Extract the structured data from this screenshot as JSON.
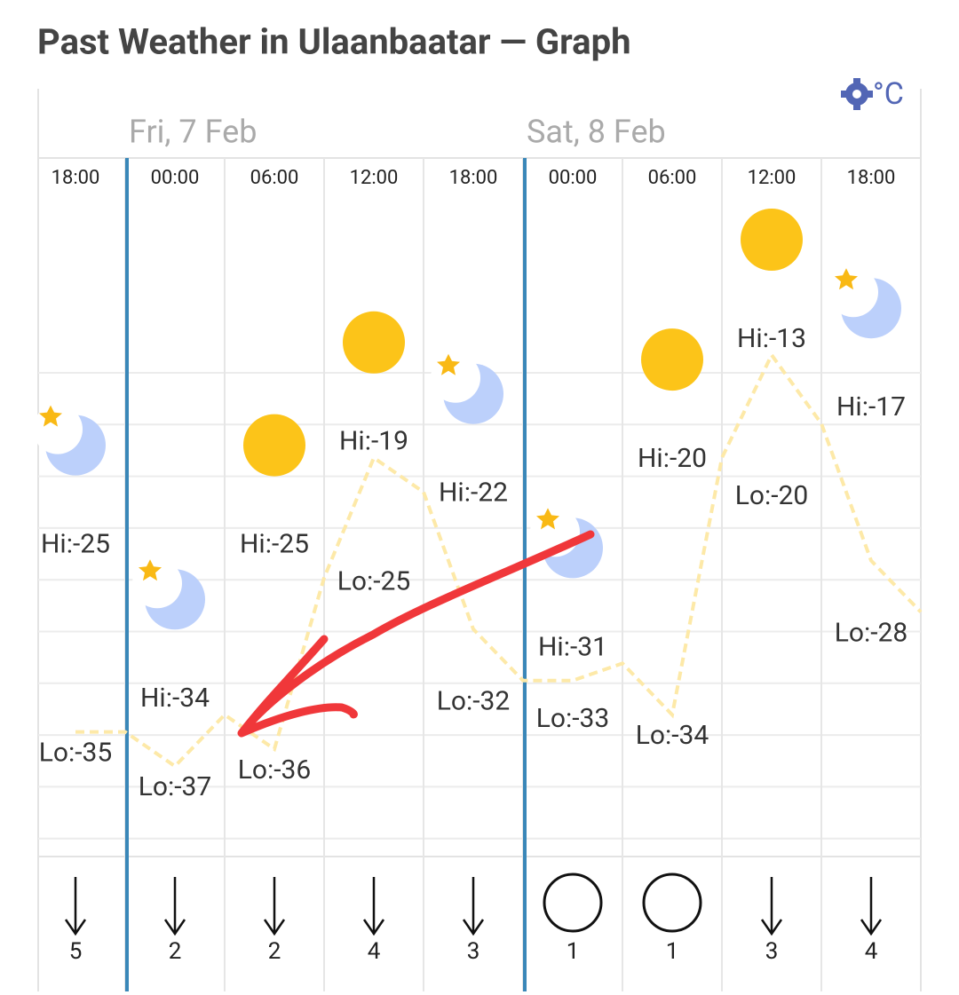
{
  "header": {
    "title": "Past Weather in Ulaanbaatar — Graph",
    "unit": "°C"
  },
  "days": [
    "Fri, 7 Feb",
    "Sat, 8 Feb"
  ],
  "columns": [
    {
      "time": "18:00",
      "icon": "moon",
      "hi": {
        "value": -25,
        "label": "Hi:-25"
      },
      "lo": {
        "value": -35,
        "label": "Lo:-35"
      },
      "wind": 5,
      "wind_icon": "arrow"
    },
    {
      "time": "00:00",
      "icon": "moon",
      "hi": {
        "value": -34,
        "label": "Hi:-34"
      },
      "lo": {
        "value": -37,
        "label": "Lo:-37"
      },
      "wind": 2,
      "wind_icon": "arrow"
    },
    {
      "time": "06:00",
      "icon": "sun",
      "hi": {
        "value": -25,
        "label": "Hi:-25"
      },
      "lo": {
        "value": -36,
        "label": "Lo:-36"
      },
      "wind": 2,
      "wind_icon": "arrow"
    },
    {
      "time": "12:00",
      "icon": "sun",
      "hi": {
        "value": -19,
        "label": "Hi:-19"
      },
      "lo": {
        "value": -25,
        "label": "Lo:-25"
      },
      "wind": 4,
      "wind_icon": "arrow"
    },
    {
      "time": "18:00",
      "icon": "moon",
      "hi": {
        "value": -22,
        "label": "Hi:-22"
      },
      "lo": {
        "value": -32,
        "label": "Lo:-32"
      },
      "wind": 3,
      "wind_icon": "arrow"
    },
    {
      "time": "00:00",
      "icon": "moon",
      "hi": {
        "value": -31,
        "label": "Hi:-31"
      },
      "lo": {
        "value": -33,
        "label": "Lo:-33"
      },
      "wind": 1,
      "wind_icon": "calm"
    },
    {
      "time": "06:00",
      "icon": "sun",
      "hi": {
        "value": -20,
        "label": "Hi:-20"
      },
      "lo": {
        "value": -34,
        "label": "Lo:-34"
      },
      "wind": 1,
      "wind_icon": "calm"
    },
    {
      "time": "12:00",
      "icon": "sun",
      "hi": {
        "value": -13,
        "label": "Hi:-13"
      },
      "lo": {
        "value": -20,
        "label": "Lo:-20"
      },
      "wind": 3,
      "wind_icon": "arrow"
    },
    {
      "time": "18:00",
      "icon": "moon",
      "hi": {
        "value": -17,
        "label": "Hi:-17"
      },
      "lo": {
        "value": -28,
        "label": "Lo:-28"
      },
      "wind": 4,
      "wind_icon": "arrow"
    }
  ],
  "temperature": {
    "values": [
      -35,
      -35,
      -37,
      -34,
      -36,
      -26,
      -19,
      -21,
      -29,
      -32,
      -32,
      -31,
      -34,
      -19,
      -13,
      -17,
      -25,
      -28
    ]
  }
}
